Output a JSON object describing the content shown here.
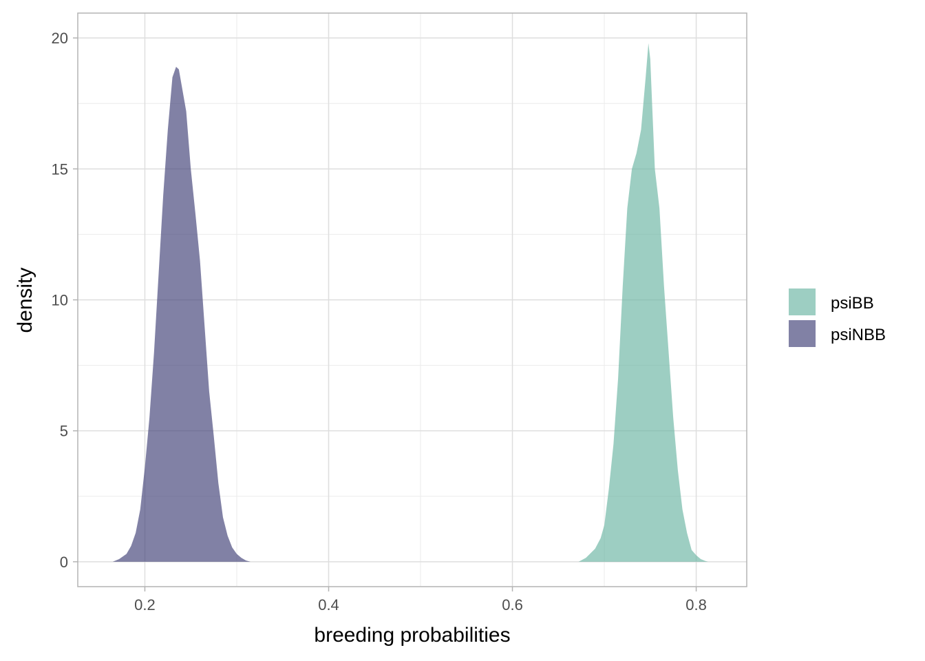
{
  "chart_data": {
    "type": "area",
    "chart_kind": "density",
    "xlabel": "breeding probabilities",
    "ylabel": "density",
    "xlim": [
      0.127,
      0.855
    ],
    "ylim": [
      -0.95,
      20.95
    ],
    "x_ticks": [
      {
        "value": 0.2,
        "label": "0.2"
      },
      {
        "value": 0.4,
        "label": "0.4"
      },
      {
        "value": 0.6,
        "label": "0.6"
      },
      {
        "value": 0.8,
        "label": "0.8"
      }
    ],
    "x_minor_ticks": [
      0.3,
      0.5,
      0.7
    ],
    "y_ticks": [
      {
        "value": 0,
        "label": "0"
      },
      {
        "value": 5,
        "label": "5"
      },
      {
        "value": 10,
        "label": "10"
      },
      {
        "value": 15,
        "label": "15"
      },
      {
        "value": 20,
        "label": "20"
      }
    ],
    "y_minor_ticks": [
      2.5,
      7.5,
      12.5,
      17.5
    ],
    "grid": true,
    "legend_position": "right",
    "series": [
      {
        "name": "psiBB",
        "color": "#69b3a2",
        "opacity": 0.65,
        "x": [
          0.672,
          0.68,
          0.69,
          0.696,
          0.7,
          0.705,
          0.71,
          0.715,
          0.72,
          0.725,
          0.73,
          0.735,
          0.74,
          0.745,
          0.748,
          0.75,
          0.752,
          0.755,
          0.76,
          0.765,
          0.77,
          0.775,
          0.78,
          0.785,
          0.79,
          0.795,
          0.8,
          0.805,
          0.81,
          0.813
        ],
        "y": [
          0.0,
          0.15,
          0.5,
          0.9,
          1.4,
          2.8,
          4.5,
          7.0,
          10.5,
          13.5,
          15.0,
          15.6,
          16.5,
          18.5,
          19.8,
          19.2,
          17.5,
          15.0,
          13.5,
          10.5,
          8.0,
          5.5,
          3.5,
          2.0,
          1.1,
          0.45,
          0.25,
          0.1,
          0.03,
          0.0
        ]
      },
      {
        "name": "psiNBB",
        "color": "#3e3e74",
        "opacity": 0.65,
        "x": [
          0.165,
          0.172,
          0.18,
          0.185,
          0.19,
          0.195,
          0.2,
          0.205,
          0.21,
          0.215,
          0.22,
          0.225,
          0.23,
          0.234,
          0.237,
          0.24,
          0.245,
          0.25,
          0.255,
          0.26,
          0.265,
          0.27,
          0.275,
          0.28,
          0.285,
          0.29,
          0.295,
          0.3,
          0.305,
          0.31,
          0.315
        ],
        "y": [
          0.0,
          0.1,
          0.3,
          0.6,
          1.1,
          2.0,
          3.6,
          5.5,
          8.0,
          11.0,
          14.0,
          16.5,
          18.5,
          18.9,
          18.8,
          18.2,
          17.2,
          15.0,
          13.3,
          11.5,
          9.0,
          6.5,
          4.8,
          3.0,
          1.7,
          1.0,
          0.55,
          0.3,
          0.15,
          0.05,
          0.0
        ]
      }
    ]
  }
}
